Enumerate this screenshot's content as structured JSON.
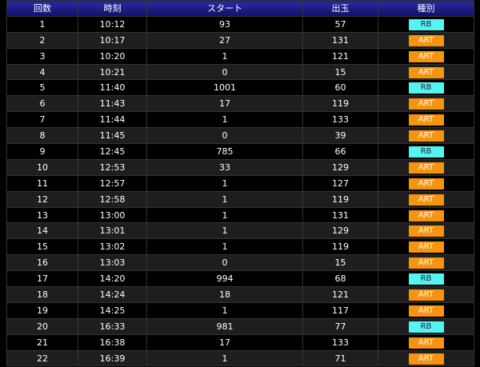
{
  "table": {
    "header": [
      "回数",
      "時刻",
      "スタート",
      "出玉",
      "種別"
    ],
    "rows": [
      [
        1,
        "10:12",
        93,
        57,
        "RB"
      ],
      [
        2,
        "10:17",
        27,
        131,
        "ART"
      ],
      [
        3,
        "10:20",
        1,
        121,
        "ART"
      ],
      [
        4,
        "10:21",
        0,
        15,
        "ART"
      ],
      [
        5,
        "11:40",
        1001,
        60,
        "RB"
      ],
      [
        6,
        "11:43",
        17,
        119,
        "ART"
      ],
      [
        7,
        "11:44",
        1,
        133,
        "ART"
      ],
      [
        8,
        "11:45",
        0,
        39,
        "ART"
      ],
      [
        9,
        "12:45",
        785,
        66,
        "RB"
      ],
      [
        10,
        "12:53",
        33,
        129,
        "ART"
      ],
      [
        11,
        "12:57",
        1,
        127,
        "ART"
      ],
      [
        12,
        "12:58",
        1,
        119,
        "ART"
      ],
      [
        13,
        "13:00",
        1,
        131,
        "ART"
      ],
      [
        14,
        "13:01",
        1,
        129,
        "ART"
      ],
      [
        15,
        "13:02",
        1,
        119,
        "ART"
      ],
      [
        16,
        "13:03",
        0,
        15,
        "ART"
      ],
      [
        17,
        "14:20",
        994,
        68,
        "RB"
      ],
      [
        18,
        "14:24",
        18,
        121,
        "ART"
      ],
      [
        19,
        "14:25",
        1,
        117,
        "ART"
      ],
      [
        20,
        "16:33",
        981,
        77,
        "RB"
      ],
      [
        21,
        "16:38",
        17,
        133,
        "ART"
      ],
      [
        22,
        "16:39",
        1,
        71,
        "ART"
      ]
    ]
  }
}
